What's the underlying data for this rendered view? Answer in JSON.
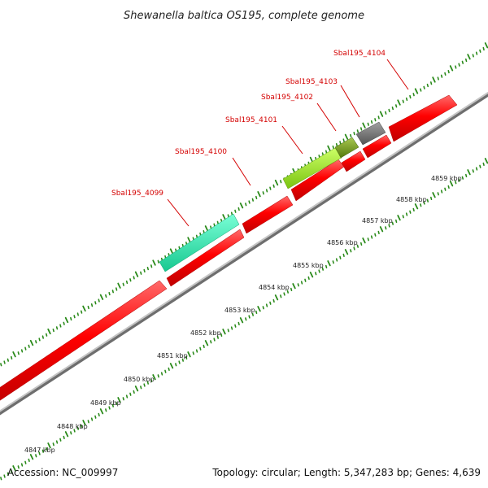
{
  "title": "Shewanella baltica OS195, complete genome",
  "footer": {
    "accession": "Accession: NC_009997",
    "topology": "Topology: circular; Length: 5,347,283 bp; Genes: 4,639"
  },
  "scale": {
    "unit": "kbp",
    "ticks": [
      "4847 kbp",
      "4848 kbp",
      "4849 kbp",
      "4850 kbp",
      "4851 kbp",
      "4852 kbp",
      "4853 kbp",
      "4854 kbp",
      "4855 kbp",
      "4856 kbp",
      "4857 kbp",
      "4858 kbp",
      "4859 kbp"
    ]
  },
  "gene_labels": [
    "Sbal195_4099",
    "Sbal195_4100",
    "Sbal195_4101",
    "Sbal195_4102",
    "Sbal195_4103",
    "Sbal195_4104"
  ],
  "colors": {
    "gene_cds": "#ff0000",
    "gene_4099": "#22e6a8",
    "gene_4101": "#99ee22",
    "gene_4102": "#669911",
    "gene_4103": "#707070",
    "backbone": "#9a9a9a",
    "ticks": "#2a8a1a",
    "label_text": "#d40000"
  }
}
